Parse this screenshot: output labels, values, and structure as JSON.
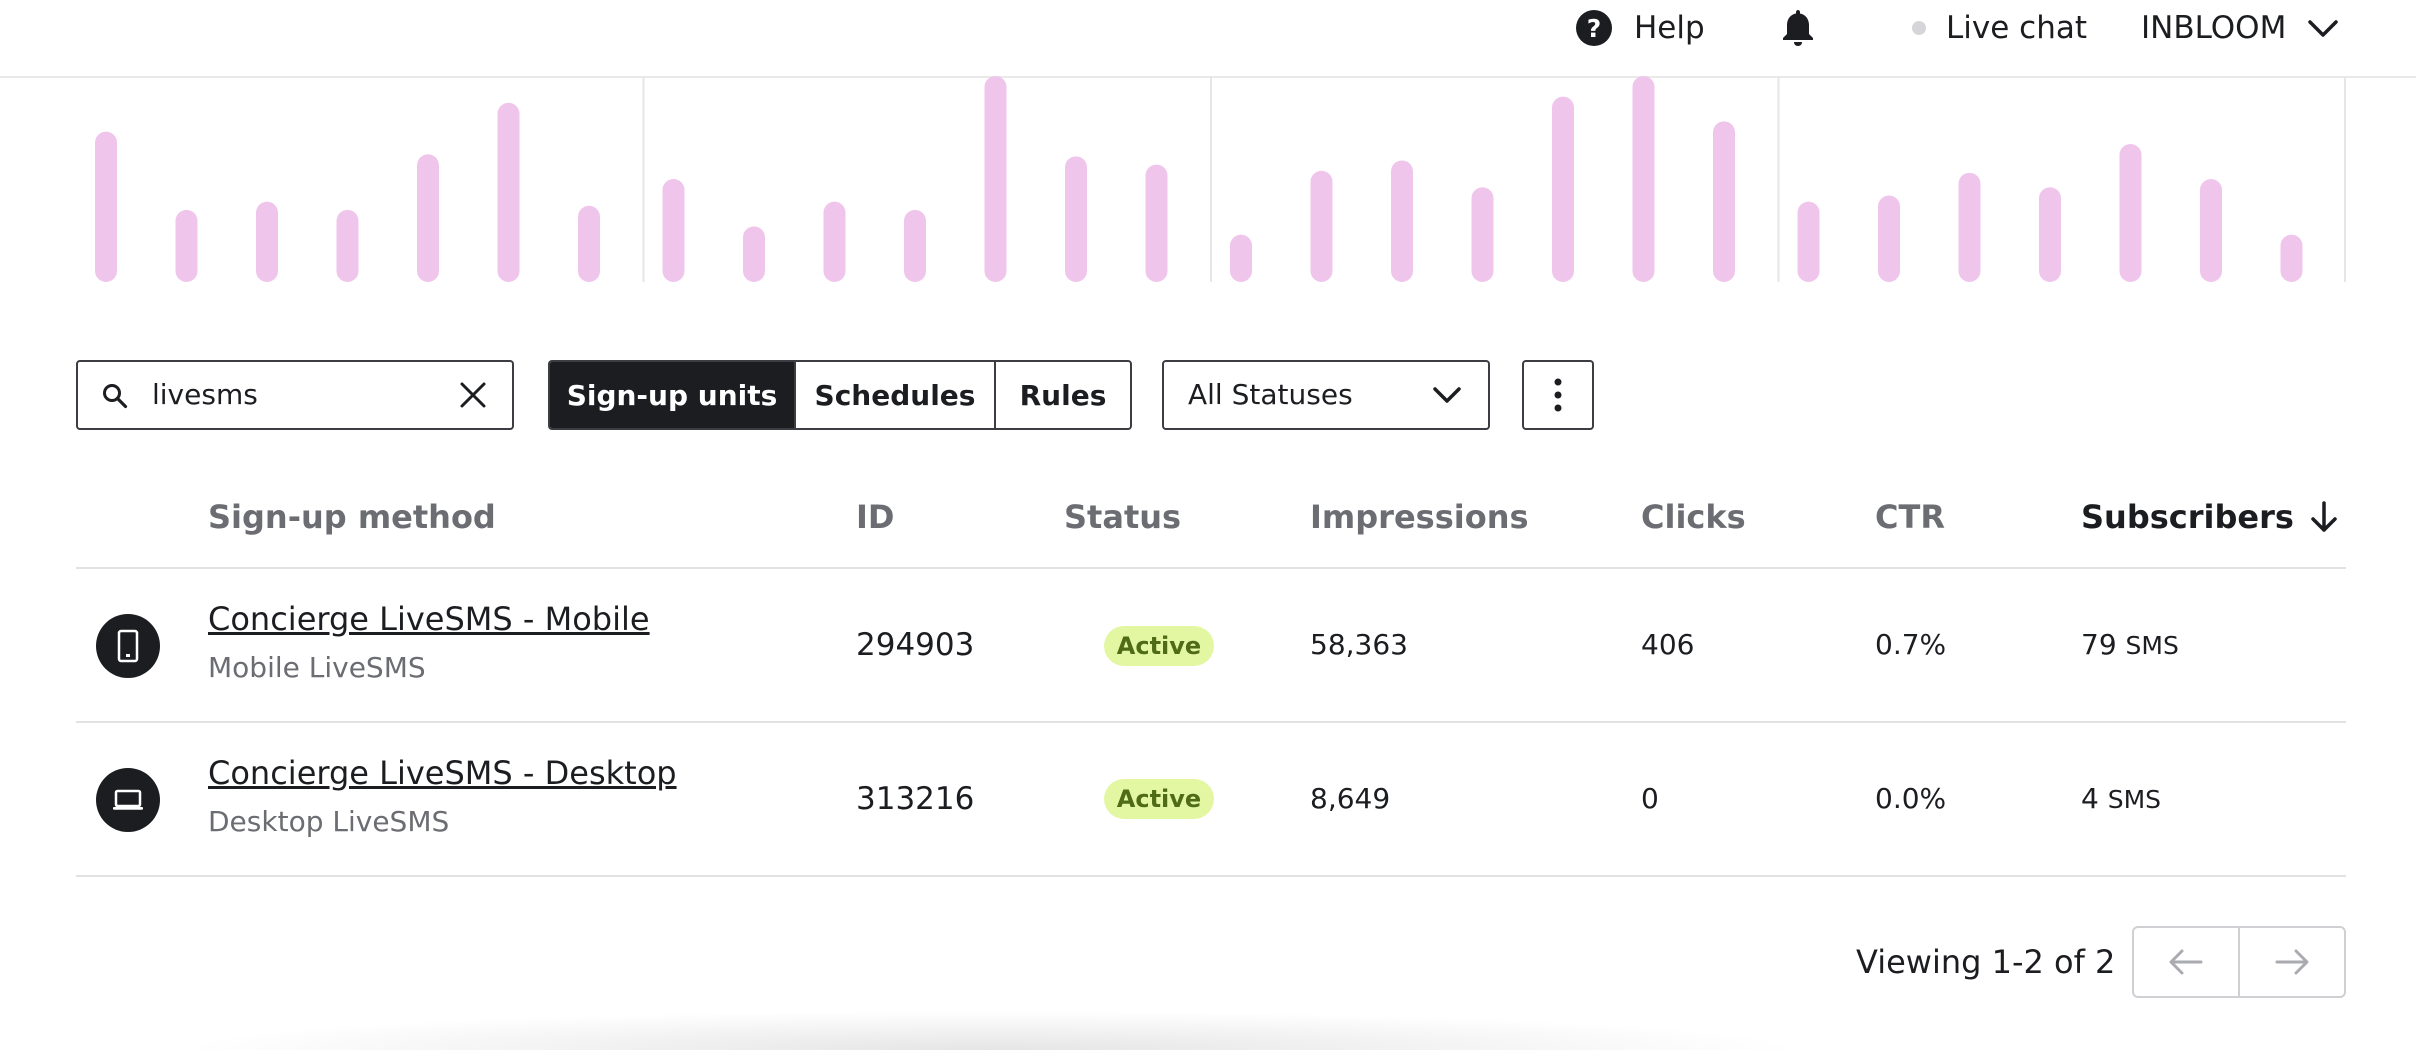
{
  "topbar": {
    "help_label": "Help",
    "help_icon": "?",
    "live_chat_label": "Live chat",
    "account_label": "INBLOOM"
  },
  "chart_data": {
    "type": "bar",
    "color": "#f0c5ec",
    "groups": 4,
    "values": [
      [
        0.73,
        0.35,
        0.39,
        0.35,
        0.62,
        0.87,
        0.37
      ],
      [
        0.5,
        0.27,
        0.39,
        0.35,
        1.0,
        0.61,
        0.57
      ],
      [
        0.23,
        0.54,
        0.59,
        0.46,
        0.9,
        1.0,
        0.78
      ],
      [
        0.39,
        0.42,
        0.53,
        0.46,
        0.67,
        0.5,
        0.23
      ]
    ]
  },
  "controls": {
    "search_value": "livesms",
    "tabs": [
      "Sign-up units",
      "Schedules",
      "Rules"
    ],
    "active_tab": 0,
    "status_filter": "All Statuses"
  },
  "table": {
    "headers": {
      "method": "Sign-up method",
      "id": "ID",
      "status": "Status",
      "impressions": "Impressions",
      "clicks": "Clicks",
      "ctr": "CTR",
      "subscribers": "Subscribers"
    },
    "rows": [
      {
        "icon": "mobile-icon",
        "title": "Concierge LiveSMS - Mobile",
        "subtitle": "Mobile LiveSMS",
        "id": "294903",
        "status": "Active",
        "impressions": "58,363",
        "clicks": "406",
        "ctr": "0.7%",
        "subscribers": "79",
        "subscribers_unit": "SMS"
      },
      {
        "icon": "desktop-icon",
        "title": "Concierge LiveSMS - Desktop",
        "subtitle": "Desktop LiveSMS",
        "id": "313216",
        "status": "Active",
        "impressions": "8,649",
        "clicks": "0",
        "ctr": "0.0%",
        "subscribers": "4",
        "subscribers_unit": "SMS"
      }
    ]
  },
  "footer": {
    "viewing": "Viewing 1-2 of 2"
  }
}
